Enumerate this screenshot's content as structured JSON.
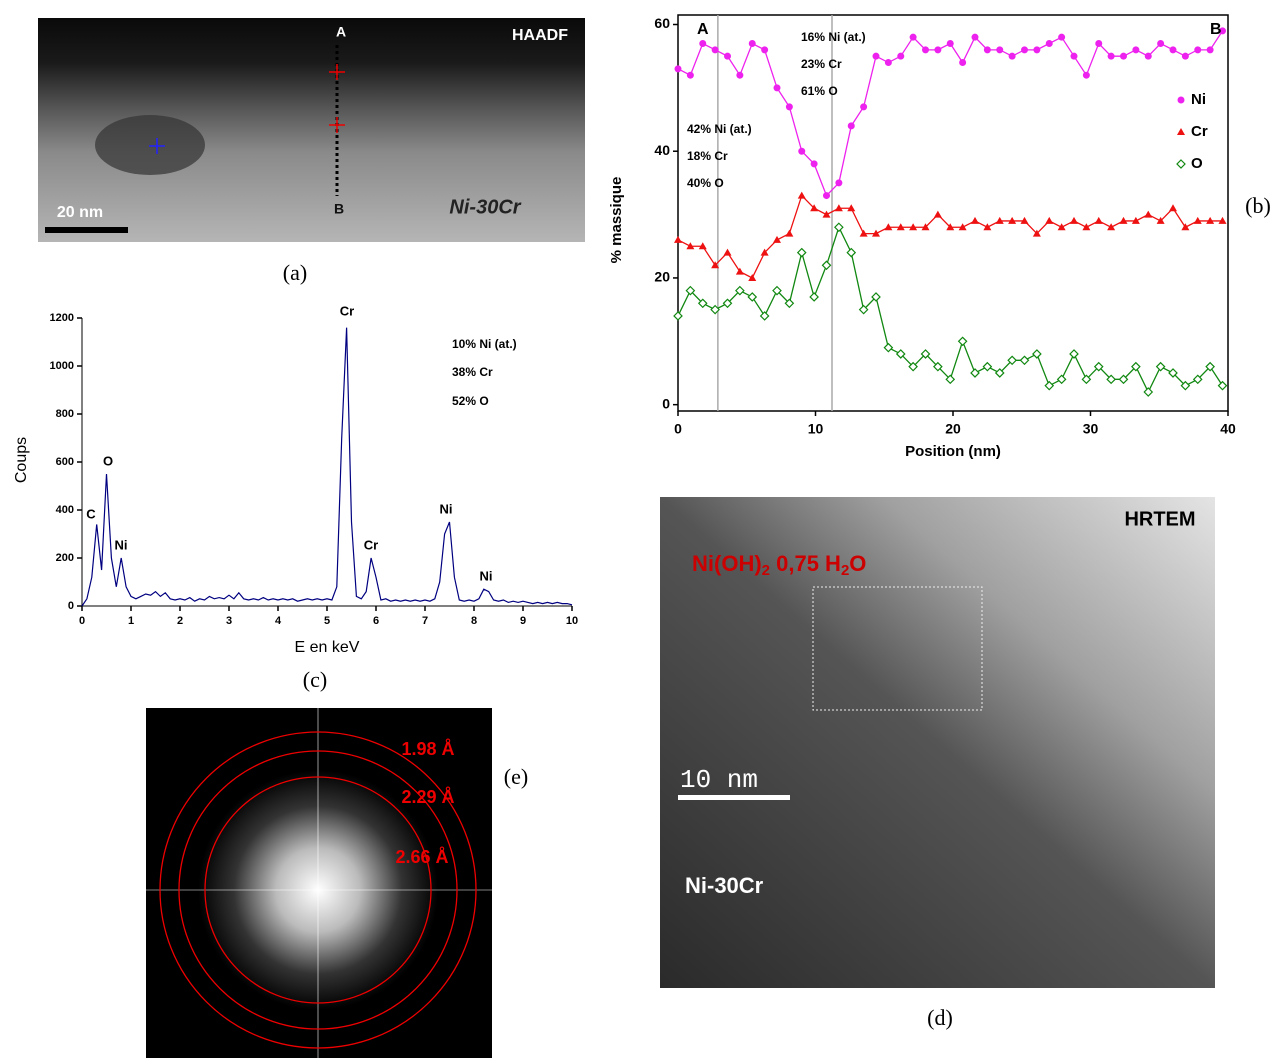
{
  "panel_labels": {
    "a": "(a)",
    "b": "(b)",
    "c": "(c)",
    "d": "(d)",
    "e": "(e)"
  },
  "haadf": {
    "mode": "HAADF",
    "point_a": "A",
    "point_b": "B",
    "scale": "20 nm",
    "material": "Ni-30Cr"
  },
  "hrtem": {
    "mode": "HRTEM",
    "phase": [
      "Ni(OH)",
      "2",
      " 0,75 H",
      "2",
      "O"
    ],
    "material": "Ni-30Cr",
    "scale": "10 nm"
  },
  "fft": {
    "rings": [
      "1.98 Å",
      "2.29 Å",
      "2.66 Å"
    ]
  },
  "chart_data": [
    {
      "type": "line",
      "xlabel": "Position (nm)",
      "ylabel": "% massique",
      "x": [
        0,
        0.9,
        1.8,
        2.7,
        3.6,
        4.5,
        5.4,
        6.3,
        7.2,
        8.1,
        9,
        9.9,
        10.8,
        11.7,
        12.6,
        13.5,
        14.4,
        15.3,
        16.2,
        17.1,
        18,
        18.9,
        19.8,
        20.7,
        21.6,
        22.5,
        23.4,
        24.3,
        25.2,
        26.1,
        27,
        27.9,
        28.8,
        29.7,
        30.6,
        31.5,
        32.4,
        33.3,
        34.2,
        35.1,
        36,
        36.9,
        37.8,
        38.7,
        39.6
      ],
      "series": [
        {
          "name": "Ni",
          "color": "#ee22ee",
          "marker": "circle",
          "values": [
            53,
            52,
            57,
            56,
            55,
            52,
            57,
            56,
            50,
            47,
            40,
            38,
            33,
            35,
            44,
            47,
            55,
            54,
            55,
            58,
            56,
            56,
            57,
            54,
            58,
            56,
            56,
            55,
            56,
            56,
            57,
            58,
            55,
            52,
            57,
            55,
            55,
            56,
            55,
            57,
            56,
            55,
            56,
            56,
            59
          ]
        },
        {
          "name": "Cr",
          "color": "#ee1111",
          "marker": "triangle",
          "values": [
            26,
            25,
            25,
            22,
            24,
            21,
            20,
            24,
            26,
            27,
            33,
            31,
            30,
            31,
            31,
            27,
            27,
            28,
            28,
            28,
            28,
            30,
            28,
            28,
            29,
            28,
            29,
            29,
            29,
            27,
            29,
            28,
            29,
            28,
            29,
            28,
            29,
            29,
            30,
            29,
            31,
            28,
            29,
            29,
            29
          ]
        },
        {
          "name": "O",
          "color": "#118811",
          "marker": "diamond",
          "values": [
            14,
            18,
            16,
            15,
            16,
            18,
            17,
            14,
            18,
            16,
            24,
            17,
            22,
            28,
            24,
            15,
            17,
            9,
            8,
            6,
            8,
            6,
            4,
            10,
            5,
            6,
            5,
            7,
            7,
            8,
            3,
            4,
            8,
            4,
            6,
            4,
            4,
            6,
            2,
            6,
            5,
            3,
            4,
            6,
            3
          ]
        }
      ],
      "xlim": [
        0,
        40
      ],
      "ylim": [
        -1,
        61.5
      ],
      "xticks": [
        0,
        10,
        20,
        30,
        40
      ],
      "yticks": [
        0,
        20,
        40,
        60
      ],
      "vlines": [
        2.9,
        11.2
      ],
      "annotations": [
        "A",
        "B",
        "16% Ni (at.)",
        "23% Cr",
        "61% O",
        "42% Ni (at.)",
        "18% Cr",
        "40% O"
      ]
    },
    {
      "type": "line",
      "xlabel": "E en keV",
      "ylabel": "Coups",
      "x": [
        0,
        0.1,
        0.2,
        0.3,
        0.4,
        0.5,
        0.6,
        0.7,
        0.8,
        0.9,
        1,
        1.1,
        1.2,
        1.3,
        1.4,
        1.5,
        1.6,
        1.7,
        1.8,
        1.9,
        2,
        2.1,
        2.2,
        2.3,
        2.4,
        2.5,
        2.6,
        2.7,
        2.8,
        2.9,
        3,
        3.1,
        3.2,
        3.3,
        3.4,
        3.5,
        3.6,
        3.7,
        3.8,
        3.9,
        4,
        4.1,
        4.2,
        4.3,
        4.4,
        4.5,
        4.6,
        4.7,
        4.8,
        4.9,
        5,
        5.1,
        5.2,
        5.3,
        5.4,
        5.5,
        5.6,
        5.7,
        5.8,
        5.9,
        6,
        6.1,
        6.2,
        6.3,
        6.4,
        6.5,
        6.6,
        6.7,
        6.8,
        6.9,
        7,
        7.1,
        7.2,
        7.3,
        7.4,
        7.5,
        7.6,
        7.7,
        7.8,
        7.9,
        8,
        8.1,
        8.2,
        8.3,
        8.4,
        8.5,
        8.6,
        8.7,
        8.8,
        8.9,
        9,
        9.1,
        9.2,
        9.3,
        9.4,
        9.5,
        9.6,
        9.7,
        9.8,
        9.9,
        10
      ],
      "series": [
        {
          "color": "#000080",
          "values": [
            0,
            30,
            120,
            340,
            150,
            550,
            200,
            80,
            200,
            80,
            40,
            30,
            40,
            50,
            45,
            60,
            40,
            55,
            30,
            25,
            30,
            25,
            35,
            20,
            30,
            25,
            40,
            30,
            35,
            30,
            45,
            30,
            55,
            30,
            25,
            30,
            25,
            35,
            25,
            30,
            25,
            30,
            25,
            30,
            20,
            25,
            30,
            25,
            30,
            25,
            30,
            25,
            80,
            700,
            1160,
            350,
            40,
            30,
            60,
            200,
            120,
            25,
            30,
            20,
            25,
            20,
            25,
            20,
            25,
            20,
            25,
            20,
            30,
            100,
            300,
            350,
            120,
            25,
            20,
            25,
            20,
            30,
            70,
            60,
            25,
            20,
            25,
            15,
            20,
            15,
            20,
            15,
            10,
            15,
            10,
            15,
            10,
            15,
            10,
            10,
            5
          ]
        }
      ],
      "xlim": [
        0,
        10
      ],
      "ylim": [
        0,
        1200
      ],
      "xticks": [
        0,
        1,
        2,
        3,
        4,
        5,
        6,
        7,
        8,
        9,
        10
      ],
      "yticks": [
        0,
        200,
        400,
        600,
        800,
        1000,
        1200
      ],
      "peak_labels": [
        "C",
        "O",
        "Ni",
        "Cr",
        "Cr",
        "Ni",
        "Ni"
      ],
      "annotations": [
        "10% Ni (at.)",
        "38% Cr",
        "52% O"
      ]
    }
  ]
}
